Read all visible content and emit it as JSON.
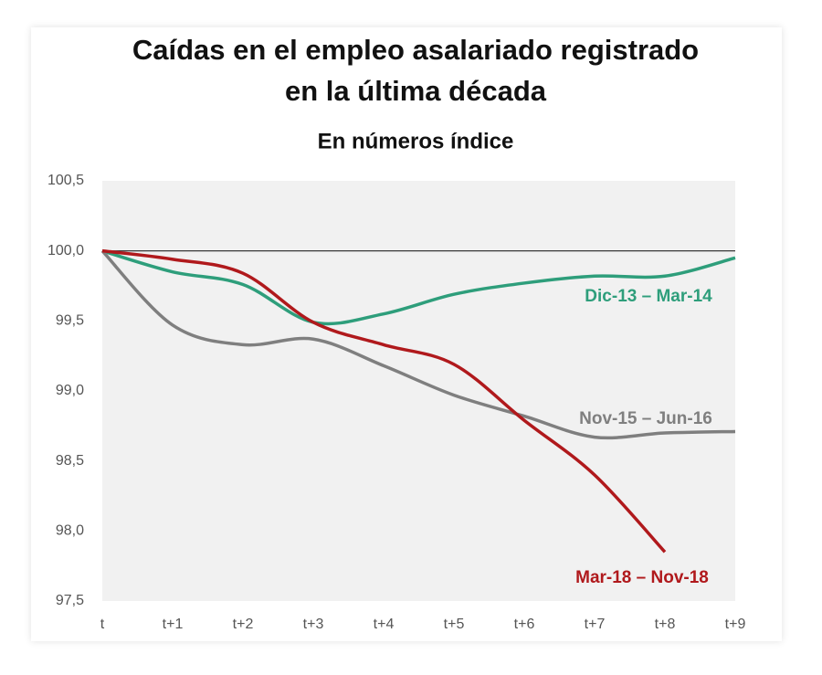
{
  "chart_data": {
    "type": "line",
    "title": [
      "Caídas en el empleo asalariado registrado",
      "en la última década"
    ],
    "subtitle": "En números índice",
    "categories": [
      "t",
      "t+1",
      "t+2",
      "t+3",
      "t+4",
      "t+5",
      "t+6",
      "t+7",
      "t+8",
      "t+9"
    ],
    "series": [
      {
        "name": "Dic-13 – Mar-14",
        "color": "#2e9e7b",
        "values": [
          100,
          99.85,
          99.76,
          99.49,
          99.55,
          99.69,
          99.77,
          99.82,
          99.82,
          99.95
        ]
      },
      {
        "name": "Nov-15 – Jun-16",
        "color": "#7f7f7f",
        "values": [
          100,
          99.47,
          99.33,
          99.37,
          99.18,
          98.97,
          98.82,
          98.67,
          98.7,
          98.71
        ]
      },
      {
        "name": "Mar-18 – Nov-18",
        "color": "#b0191c",
        "values": [
          100,
          99.94,
          99.84,
          99.49,
          99.33,
          99.19,
          98.79,
          98.4,
          97.85,
          null
        ]
      }
    ],
    "ylim": [
      97.5,
      100.5
    ],
    "yticks": [
      {
        "value": 97.5,
        "label": "97,5"
      },
      {
        "value": 98,
        "label": "98,0"
      },
      {
        "value": 98.5,
        "label": "98,5"
      },
      {
        "value": 99,
        "label": "99,0"
      },
      {
        "value": 99.5,
        "label": "99,5"
      },
      {
        "value": 100,
        "label": "100,0"
      },
      {
        "value": 100.5,
        "label": "100,5"
      }
    ],
    "baseline": 100,
    "grid": false
  }
}
